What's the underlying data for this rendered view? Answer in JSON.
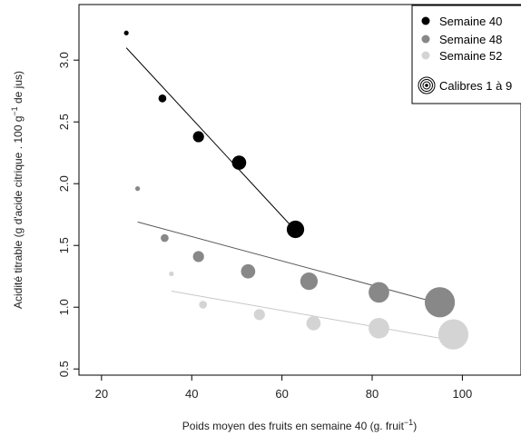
{
  "chart_data": {
    "type": "scatter",
    "xlabel_text": "Poids moyen des fruits en semaine 40 (g. fruit",
    "xlabel_sup": "−1",
    "xlabel_close": ")",
    "ylabel_text": "Acidité titrable (g d'acide citrique . 100 g",
    "ylabel_sup": "−1",
    "ylabel_close": " de jus)",
    "xlim": [
      15,
      113
    ],
    "ylim": [
      0.45,
      3.45
    ],
    "xticks": [
      20,
      40,
      60,
      80,
      100
    ],
    "yticks": [
      0.5,
      1.0,
      1.5,
      2.0,
      2.5,
      3.0
    ],
    "ytick_labels": [
      "0.5",
      "1.0",
      "1.5",
      "2.0",
      "2.5",
      "3.0"
    ],
    "grid": false,
    "legend_position": "top-right",
    "series": [
      {
        "name": "Semaine 40",
        "color": "#000000",
        "points": [
          {
            "x": 25.5,
            "y": 3.22,
            "size": 1
          },
          {
            "x": 33.5,
            "y": 2.69,
            "size": 2
          },
          {
            "x": 41.5,
            "y": 2.38,
            "size": 3
          },
          {
            "x": 50.5,
            "y": 2.17,
            "size": 4
          },
          {
            "x": 63.0,
            "y": 1.63,
            "size": 5
          }
        ],
        "fit_line": [
          [
            25.5,
            3.1
          ],
          [
            63.0,
            1.62
          ]
        ]
      },
      {
        "name": "Semaine 48",
        "color": "#888888",
        "points": [
          {
            "x": 28.0,
            "y": 1.96,
            "size": 1
          },
          {
            "x": 34.0,
            "y": 1.56,
            "size": 2
          },
          {
            "x": 41.5,
            "y": 1.41,
            "size": 3
          },
          {
            "x": 52.5,
            "y": 1.29,
            "size": 4
          },
          {
            "x": 66.0,
            "y": 1.21,
            "size": 5
          },
          {
            "x": 81.5,
            "y": 1.12,
            "size": 6
          },
          {
            "x": 95.0,
            "y": 1.04,
            "size": 9
          }
        ],
        "fit_line": [
          [
            28.0,
            1.69
          ],
          [
            95.0,
            1.03
          ]
        ]
      },
      {
        "name": "Semaine 52",
        "color": "#d4d4d4",
        "points": [
          {
            "x": 35.5,
            "y": 1.27,
            "size": 1
          },
          {
            "x": 42.5,
            "y": 1.02,
            "size": 2
          },
          {
            "x": 55.0,
            "y": 0.94,
            "size": 3
          },
          {
            "x": 67.0,
            "y": 0.87,
            "size": 4
          },
          {
            "x": 81.5,
            "y": 0.83,
            "size": 6
          },
          {
            "x": 98.0,
            "y": 0.78,
            "size": 9
          }
        ],
        "fit_line": [
          [
            35.5,
            1.13
          ],
          [
            98.0,
            0.73
          ]
        ]
      }
    ],
    "size_legend_label": "Calibres 1 à 9"
  }
}
